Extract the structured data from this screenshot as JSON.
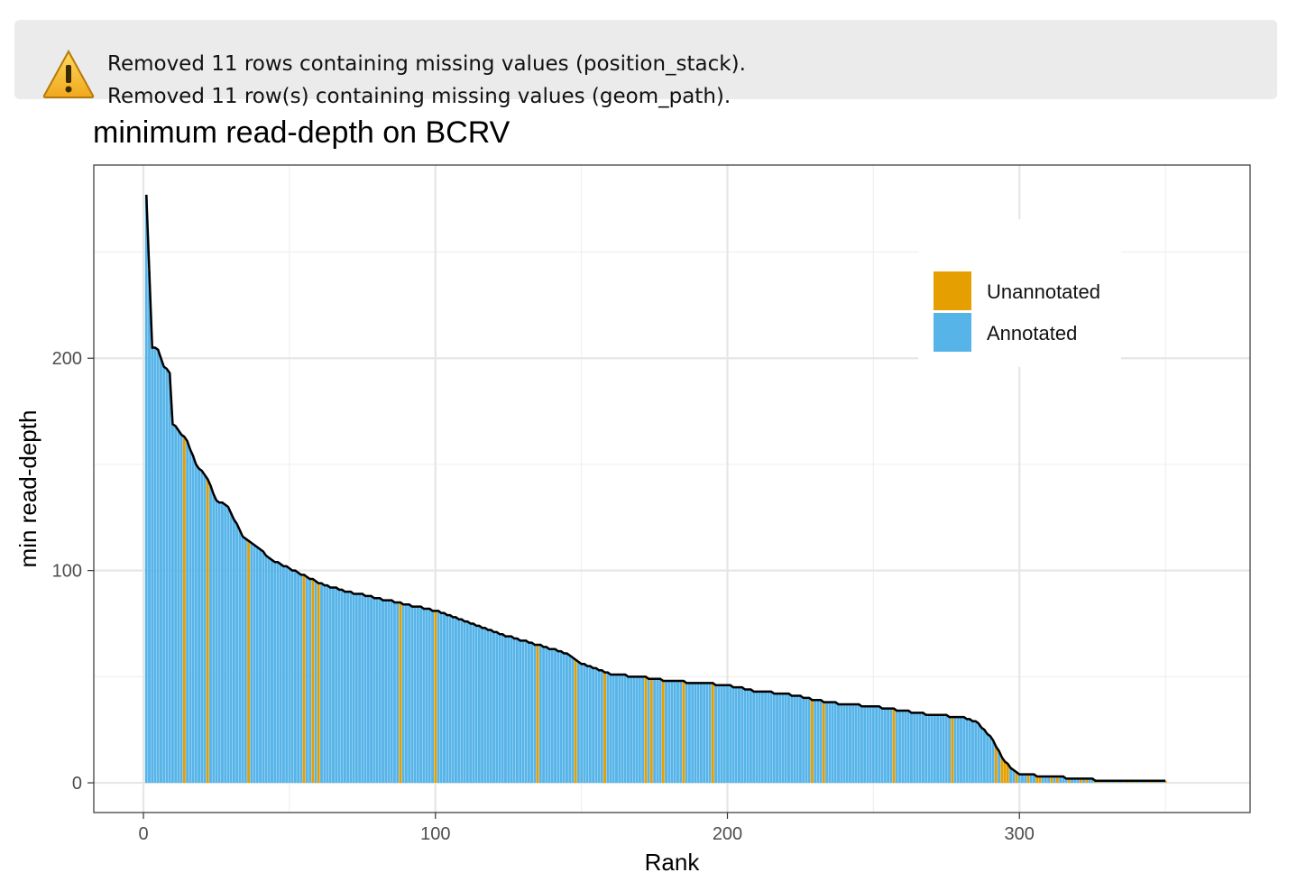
{
  "warning": {
    "icon": "warning-icon",
    "lines": [
      "Removed 11 rows containing missing values (position_stack).",
      "Removed 11 row(s) containing missing values (geom_path)."
    ]
  },
  "chart_data": {
    "type": "bar",
    "title": "minimum read-depth on BCRV",
    "xlabel": "Rank",
    "ylabel": "min read-depth",
    "xlim": [
      -17,
      379
    ],
    "ylim": [
      -14,
      291
    ],
    "x_ticks": [
      "0",
      "100",
      "200",
      "300"
    ],
    "y_ticks": [
      "0",
      "100",
      "200"
    ],
    "grid": true,
    "legend_position": "top-right",
    "series": [
      {
        "name": "Unannotated",
        "color": "#E69F00"
      },
      {
        "name": "Annotated",
        "color": "#56B4E9"
      }
    ],
    "line_color": "#000000",
    "n_bars": 350,
    "profile_points": [
      [
        1,
        277
      ],
      [
        3,
        205
      ],
      [
        5,
        204
      ],
      [
        7,
        196
      ],
      [
        9,
        193
      ],
      [
        10,
        169
      ],
      [
        12,
        166
      ],
      [
        15,
        161
      ],
      [
        18,
        150
      ],
      [
        22,
        143
      ],
      [
        25,
        133
      ],
      [
        29,
        130
      ],
      [
        34,
        116
      ],
      [
        38,
        112
      ],
      [
        44,
        105
      ],
      [
        50,
        101
      ],
      [
        56,
        97
      ],
      [
        62,
        93
      ],
      [
        70,
        90
      ],
      [
        80,
        87
      ],
      [
        90,
        84
      ],
      [
        100,
        81
      ],
      [
        110,
        76
      ],
      [
        120,
        71
      ],
      [
        130,
        67
      ],
      [
        140,
        63
      ],
      [
        145,
        61
      ],
      [
        150,
        56
      ],
      [
        160,
        51
      ],
      [
        170,
        50
      ],
      [
        180,
        48
      ],
      [
        190,
        47
      ],
      [
        200,
        46
      ],
      [
        210,
        43
      ],
      [
        220,
        42
      ],
      [
        230,
        39
      ],
      [
        240,
        37
      ],
      [
        250,
        36
      ],
      [
        260,
        34
      ],
      [
        270,
        32
      ],
      [
        280,
        31
      ],
      [
        285,
        29
      ],
      [
        290,
        22
      ],
      [
        294,
        12
      ],
      [
        297,
        7
      ],
      [
        300,
        4
      ],
      [
        310,
        3
      ],
      [
        320,
        2
      ],
      [
        330,
        1
      ],
      [
        340,
        1
      ],
      [
        350,
        1
      ]
    ],
    "unannotated_ranks": [
      14,
      22,
      36,
      55,
      58,
      60,
      88,
      100,
      135,
      148,
      158,
      172,
      174,
      178,
      185,
      195,
      229,
      233,
      257,
      277,
      292,
      294,
      295,
      296,
      299,
      303,
      306,
      307,
      311,
      313,
      317,
      321,
      323,
      326,
      328,
      330,
      333,
      336,
      338,
      340,
      343,
      345,
      347,
      350
    ]
  }
}
